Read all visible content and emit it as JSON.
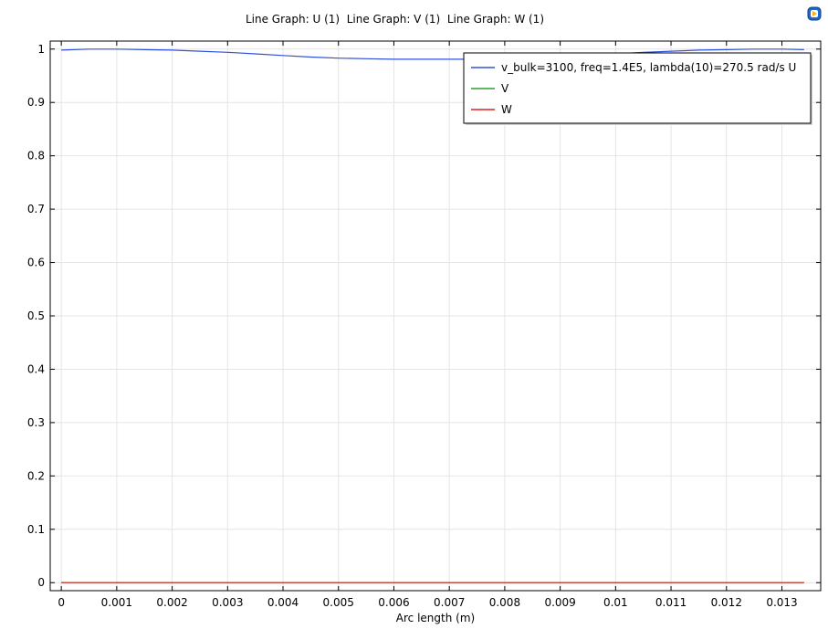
{
  "header": {
    "title": "Line Graph: U (1)  Line Graph: V (1)  Line Graph: W (1)",
    "logo_icon": "comsol-logo-icon"
  },
  "chart_data": {
    "type": "line",
    "title": "",
    "xlabel": "Arc length (m)",
    "ylabel": "",
    "xlim": [
      -0.0002,
      0.0137
    ],
    "ylim": [
      -0.015,
      1.015
    ],
    "grid": true,
    "legend_position": "top-right",
    "x_ticks": [
      0,
      0.001,
      0.002,
      0.003,
      0.004,
      0.005,
      0.006,
      0.007,
      0.008,
      0.009,
      0.01,
      0.011,
      0.012,
      0.013
    ],
    "x_tick_labels": [
      "0",
      "0.001",
      "0.002",
      "0.003",
      "0.004",
      "0.005",
      "0.006",
      "0.007",
      "0.008",
      "0.009",
      "0.01",
      "0.011",
      "0.012",
      "0.013"
    ],
    "y_ticks": [
      0,
      0.1,
      0.2,
      0.3,
      0.4,
      0.5,
      0.6,
      0.7,
      0.8,
      0.9,
      1
    ],
    "y_tick_labels": [
      "0",
      "0.1",
      "0.2",
      "0.3",
      "0.4",
      "0.5",
      "0.6",
      "0.7",
      "0.8",
      "0.9",
      "1"
    ],
    "series": [
      {
        "name": "v_bulk=3100, freq=1.4E5, lambda(10)=270.5 rad/s U",
        "color": "#3050dc",
        "x": [
          0,
          0.0005,
          0.001,
          0.0015,
          0.002,
          0.0025,
          0.003,
          0.0035,
          0.004,
          0.0045,
          0.005,
          0.0055,
          0.006,
          0.0065,
          0.007,
          0.0075,
          0.008,
          0.0085,
          0.009,
          0.0095,
          0.01,
          0.0105,
          0.011,
          0.0115,
          0.012,
          0.0125,
          0.013,
          0.0134
        ],
        "y": [
          0.998,
          1.0,
          1.0,
          0.999,
          0.998,
          0.996,
          0.994,
          0.991,
          0.988,
          0.985,
          0.983,
          0.982,
          0.981,
          0.981,
          0.981,
          0.981,
          0.982,
          0.983,
          0.985,
          0.988,
          0.991,
          0.994,
          0.996,
          0.998,
          0.999,
          1.0,
          1.0,
          0.999
        ]
      },
      {
        "name": "V",
        "color": "#2ca02c",
        "x": [
          0,
          0.0134
        ],
        "y": [
          0,
          0
        ]
      },
      {
        "name": "W",
        "color": "#e02020",
        "x": [
          0,
          0.0134
        ],
        "y": [
          0,
          0
        ]
      }
    ]
  }
}
